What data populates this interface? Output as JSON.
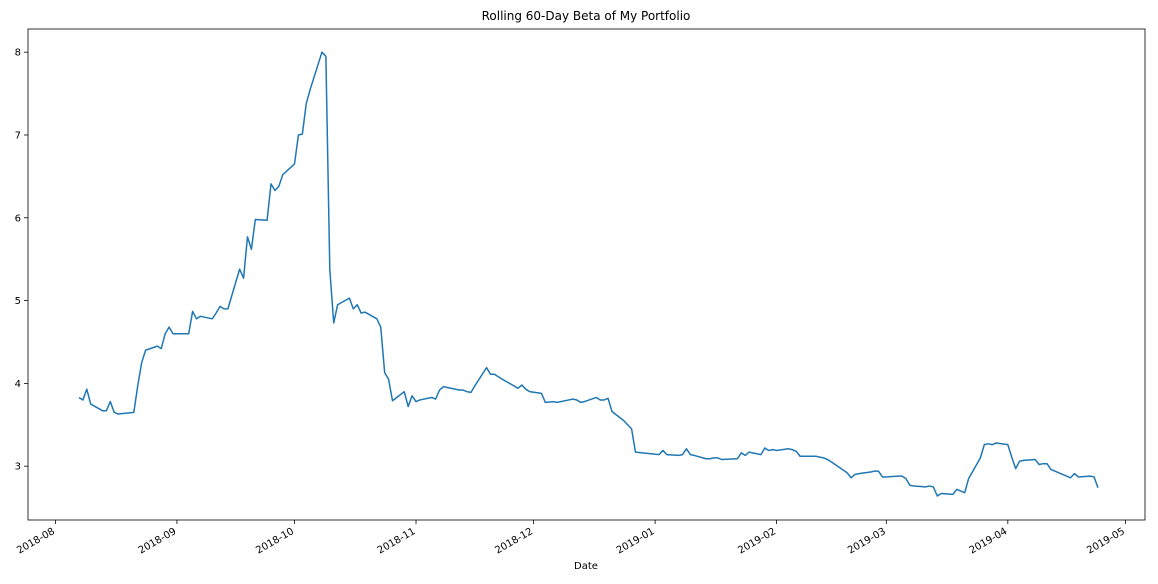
{
  "chart_data": {
    "type": "line",
    "title": "Rolling 60-Day Beta of My Portfolio",
    "x_label": "Date",
    "color": "#1f77b4",
    "xlim": [
      "2018-07-25",
      "2019-05-06"
    ],
    "xticks": [
      {
        "value": "2018-08-01",
        "label": "2018-08"
      },
      {
        "value": "2018-09-01",
        "label": "2018-09"
      },
      {
        "value": "2018-10-01",
        "label": "2018-10"
      },
      {
        "value": "2018-11-01",
        "label": "2018-11"
      },
      {
        "value": "2018-12-01",
        "label": "2018-12"
      },
      {
        "value": "2019-01-01",
        "label": "2019-01"
      },
      {
        "value": "2019-02-01",
        "label": "2019-02"
      },
      {
        "value": "2019-03-01",
        "label": "2019-03"
      },
      {
        "value": "2019-04-01",
        "label": "2019-04"
      },
      {
        "value": "2019-05-01",
        "label": "2019-05"
      }
    ],
    "ylim": [
      2.35,
      8.28
    ],
    "yticks": [
      3,
      4,
      5,
      6,
      7,
      8
    ],
    "x": [
      "2018-08-07",
      "2018-08-08",
      "2018-08-09",
      "2018-08-10",
      "2018-08-13",
      "2018-08-14",
      "2018-08-15",
      "2018-08-16",
      "2018-08-17",
      "2018-08-21",
      "2018-08-22",
      "2018-08-23",
      "2018-08-24",
      "2018-08-27",
      "2018-08-28",
      "2018-08-29",
      "2018-08-30",
      "2018-08-31",
      "2018-09-04",
      "2018-09-05",
      "2018-09-06",
      "2018-09-07",
      "2018-09-10",
      "2018-09-11",
      "2018-09-12",
      "2018-09-13",
      "2018-09-14",
      "2018-09-17",
      "2018-09-18",
      "2018-09-19",
      "2018-09-20",
      "2018-09-21",
      "2018-09-24",
      "2018-09-25",
      "2018-09-26",
      "2018-09-27",
      "2018-09-28",
      "2018-10-01",
      "2018-10-02",
      "2018-10-03",
      "2018-10-04",
      "2018-10-05",
      "2018-10-08",
      "2018-10-09",
      "2018-10-10",
      "2018-10-11",
      "2018-10-12",
      "2018-10-15",
      "2018-10-16",
      "2018-10-17",
      "2018-10-18",
      "2018-10-19",
      "2018-10-22",
      "2018-10-23",
      "2018-10-24",
      "2018-10-25",
      "2018-10-26",
      "2018-10-29",
      "2018-10-30",
      "2018-10-31",
      "2018-11-01",
      "2018-11-02",
      "2018-11-05",
      "2018-11-06",
      "2018-11-07",
      "2018-11-08",
      "2018-11-09",
      "2018-11-12",
      "2018-11-13",
      "2018-11-14",
      "2018-11-15",
      "2018-11-16",
      "2018-11-19",
      "2018-11-20",
      "2018-11-21",
      "2018-11-23",
      "2018-11-26",
      "2018-11-27",
      "2018-11-28",
      "2018-11-29",
      "2018-11-30",
      "2018-12-03",
      "2018-12-04",
      "2018-12-06",
      "2018-12-07",
      "2018-12-10",
      "2018-12-11",
      "2018-12-12",
      "2018-12-13",
      "2018-12-14",
      "2018-12-17",
      "2018-12-18",
      "2018-12-19",
      "2018-12-20",
      "2018-12-21",
      "2018-12-24",
      "2018-12-26",
      "2018-12-27",
      "2019-01-02",
      "2019-01-03",
      "2019-01-04",
      "2019-01-07",
      "2019-01-08",
      "2019-01-09",
      "2019-01-10",
      "2019-01-11",
      "2019-01-14",
      "2019-01-15",
      "2019-01-16",
      "2019-01-17",
      "2019-01-18",
      "2019-01-22",
      "2019-01-23",
      "2019-01-24",
      "2019-01-25",
      "2019-01-28",
      "2019-01-29",
      "2019-01-30",
      "2019-01-31",
      "2019-02-01",
      "2019-02-04",
      "2019-02-05",
      "2019-02-06",
      "2019-02-07",
      "2019-02-08",
      "2019-02-11",
      "2019-02-12",
      "2019-02-13",
      "2019-02-14",
      "2019-02-15",
      "2019-02-19",
      "2019-02-20",
      "2019-02-21",
      "2019-02-22",
      "2019-02-25",
      "2019-02-26",
      "2019-02-27",
      "2019-02-28",
      "2019-03-01",
      "2019-03-04",
      "2019-03-05",
      "2019-03-06",
      "2019-03-07",
      "2019-03-08",
      "2019-03-11",
      "2019-03-12",
      "2019-03-13",
      "2019-03-14",
      "2019-03-15",
      "2019-03-18",
      "2019-03-19",
      "2019-03-20",
      "2019-03-21",
      "2019-03-22",
      "2019-03-25",
      "2019-03-26",
      "2019-03-27",
      "2019-03-28",
      "2019-03-29",
      "2019-04-01",
      "2019-04-02",
      "2019-04-03",
      "2019-04-04",
      "2019-04-05",
      "2019-04-08",
      "2019-04-09",
      "2019-04-10",
      "2019-04-11",
      "2019-04-12",
      "2019-04-15",
      "2019-04-16",
      "2019-04-17",
      "2019-04-18",
      "2019-04-19",
      "2019-04-22",
      "2019-04-23",
      "2019-04-24"
    ],
    "values": [
      3.83,
      3.8,
      3.93,
      3.75,
      3.67,
      3.67,
      3.78,
      3.65,
      3.63,
      3.65,
      3.97,
      4.25,
      4.4,
      4.45,
      4.42,
      4.6,
      4.68,
      4.6,
      4.6,
      4.87,
      4.78,
      4.81,
      4.78,
      4.85,
      4.93,
      4.9,
      4.9,
      5.38,
      5.27,
      5.77,
      5.62,
      5.98,
      5.97,
      6.41,
      6.33,
      6.38,
      6.52,
      6.65,
      7.0,
      7.01,
      7.38,
      7.55,
      8.0,
      7.95,
      5.38,
      4.73,
      4.95,
      5.03,
      4.9,
      4.95,
      4.85,
      4.86,
      4.78,
      4.68,
      4.13,
      4.05,
      3.79,
      3.9,
      3.72,
      3.85,
      3.78,
      3.8,
      3.83,
      3.81,
      3.92,
      3.96,
      3.95,
      3.92,
      3.92,
      3.9,
      3.89,
      3.97,
      4.19,
      4.11,
      4.11,
      4.05,
      3.97,
      3.94,
      3.98,
      3.93,
      3.9,
      3.88,
      3.77,
      3.78,
      3.77,
      3.8,
      3.81,
      3.8,
      3.77,
      3.78,
      3.83,
      3.8,
      3.8,
      3.82,
      3.66,
      3.55,
      3.45,
      3.17,
      3.14,
      3.19,
      3.14,
      3.13,
      3.14,
      3.21,
      3.14,
      3.13,
      3.09,
      3.09,
      3.1,
      3.1,
      3.08,
      3.09,
      3.16,
      3.13,
      3.17,
      3.14,
      3.22,
      3.19,
      3.2,
      3.19,
      3.21,
      3.2,
      3.18,
      3.12,
      3.12,
      3.12,
      3.11,
      3.1,
      3.08,
      3.05,
      2.92,
      2.86,
      2.9,
      2.91,
      2.93,
      2.94,
      2.94,
      2.87,
      2.87,
      2.88,
      2.88,
      2.85,
      2.77,
      2.76,
      2.75,
      2.76,
      2.75,
      2.64,
      2.67,
      2.66,
      2.72,
      2.7,
      2.68,
      2.85,
      3.1,
      3.26,
      3.27,
      3.26,
      3.28,
      3.26,
      3.11,
      2.97,
      3.06,
      3.07,
      3.08,
      3.02,
      3.03,
      3.03,
      2.96,
      2.9,
      2.88,
      2.86,
      2.91,
      2.87,
      2.88,
      2.87,
      2.74
    ]
  }
}
